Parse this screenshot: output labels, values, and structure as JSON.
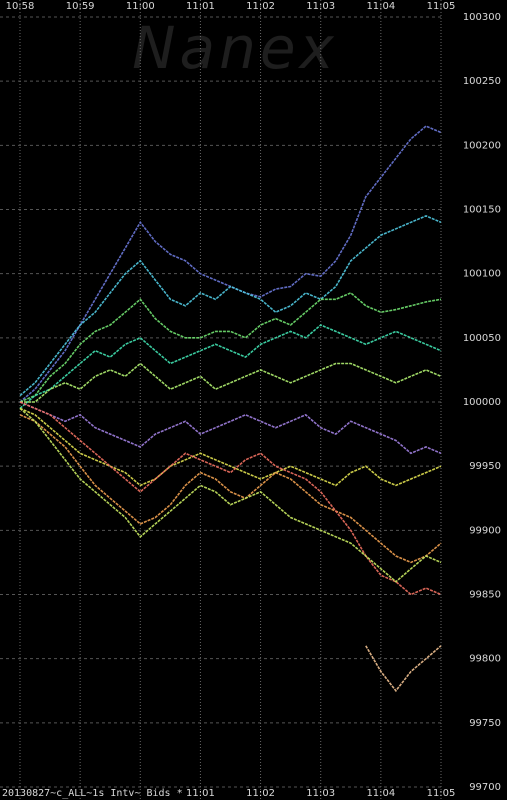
{
  "chart_data": {
    "type": "line",
    "watermark": "Nanex",
    "footer": "20130827~c_ALL~1s Intv~ Bids *",
    "xlim": [
      39480,
      39900
    ],
    "xticks": [
      {
        "value": 39480,
        "label": "10:58"
      },
      {
        "value": 39540,
        "label": "10:59"
      },
      {
        "value": 39600,
        "label": "11:00"
      },
      {
        "value": 39660,
        "label": "11:01"
      },
      {
        "value": 39720,
        "label": "11:02"
      },
      {
        "value": 39780,
        "label": "11:03"
      },
      {
        "value": 39840,
        "label": "11:04"
      },
      {
        "value": 39900,
        "label": "11:05"
      }
    ],
    "ylim": [
      99700,
      100300
    ],
    "yticks": [
      99700,
      99750,
      99800,
      99850,
      99900,
      99950,
      100000,
      100050,
      100100,
      100150,
      100200,
      100250,
      100300
    ],
    "grid": true,
    "x": [
      39480,
      39495,
      39510,
      39525,
      39540,
      39555,
      39570,
      39585,
      39600,
      39615,
      39630,
      39645,
      39660,
      39675,
      39690,
      39705,
      39720,
      39735,
      39750,
      39765,
      39780,
      39795,
      39810,
      39825,
      39840,
      39855,
      39870,
      39885,
      39900
    ],
    "series": [
      {
        "color": "#6a78d8",
        "values": [
          100000,
          100010,
          100025,
          100040,
          100060,
          100080,
          100100,
          100120,
          100140,
          100125,
          100115,
          100110,
          100100,
          100095,
          100090,
          100085,
          100082,
          100088,
          100090,
          100100,
          100098,
          100110,
          100130,
          100160,
          100175,
          100190,
          100205,
          100215,
          100210
        ]
      },
      {
        "color": "#50c8e0",
        "values": [
          100005,
          100015,
          100030,
          100045,
          100060,
          100070,
          100085,
          100100,
          100110,
          100095,
          100080,
          100075,
          100085,
          100080,
          100090,
          100085,
          100080,
          100070,
          100075,
          100085,
          100080,
          100090,
          100110,
          100120,
          100130,
          100135,
          100140,
          100145,
          100140
        ]
      },
      {
        "color": "#70e070",
        "values": [
          100000,
          100005,
          100020,
          100030,
          100045,
          100055,
          100060,
          100070,
          100080,
          100065,
          100055,
          100050,
          100050,
          100055,
          100055,
          100050,
          100060,
          100065,
          100060,
          100070,
          100080,
          100080,
          100085,
          100075,
          100070,
          100072,
          100075,
          100078,
          100080
        ]
      },
      {
        "color": "#40e0b0",
        "values": [
          99995,
          100005,
          100010,
          100020,
          100030,
          100040,
          100035,
          100045,
          100050,
          100040,
          100030,
          100035,
          100040,
          100045,
          100040,
          100035,
          100045,
          100050,
          100055,
          100050,
          100060,
          100055,
          100050,
          100045,
          100050,
          100055,
          100050,
          100045,
          100040
        ]
      },
      {
        "color": "#b0f070",
        "values": [
          100000,
          100000,
          100010,
          100015,
          100010,
          100020,
          100025,
          100020,
          100030,
          100020,
          100010,
          100015,
          100020,
          100010,
          100015,
          100020,
          100025,
          100020,
          100015,
          100020,
          100025,
          100030,
          100030,
          100025,
          100020,
          100015,
          100020,
          100025,
          100020
        ]
      },
      {
        "color": "#a080e0",
        "values": [
          100000,
          99995,
          99990,
          99985,
          99990,
          99980,
          99975,
          99970,
          99965,
          99975,
          99980,
          99985,
          99975,
          99980,
          99985,
          99990,
          99985,
          99980,
          99985,
          99990,
          99980,
          99975,
          99985,
          99980,
          99975,
          99970,
          99960,
          99965,
          99960
        ]
      },
      {
        "color": "#e0e050",
        "values": [
          99995,
          99990,
          99980,
          99970,
          99960,
          99955,
          99950,
          99945,
          99935,
          99940,
          99950,
          99955,
          99960,
          99955,
          99950,
          99945,
          99940,
          99945,
          99950,
          99945,
          99940,
          99935,
          99945,
          99950,
          99940,
          99935,
          99940,
          99945,
          99950
        ]
      },
      {
        "color": "#f0a050",
        "values": [
          99990,
          99985,
          99975,
          99965,
          99950,
          99935,
          99925,
          99915,
          99905,
          99910,
          99920,
          99935,
          99945,
          99940,
          99930,
          99925,
          99935,
          99945,
          99940,
          99930,
          99920,
          99915,
          99910,
          99900,
          99890,
          99880,
          99875,
          99880,
          99890
        ]
      },
      {
        "color": "#f07060",
        "values": [
          100000,
          99995,
          99990,
          99980,
          99970,
          99960,
          99950,
          99940,
          99930,
          99940,
          99950,
          99960,
          99955,
          99950,
          99945,
          99955,
          99960,
          99950,
          99945,
          99940,
          99930,
          99915,
          99900,
          99880,
          99865,
          99860,
          99850,
          99855,
          99850
        ]
      },
      {
        "color": "#c8e860",
        "values": [
          99995,
          99985,
          99970,
          99955,
          99940,
          99930,
          99920,
          99910,
          99895,
          99905,
          99915,
          99925,
          99935,
          99930,
          99920,
          99925,
          99930,
          99920,
          99910,
          99905,
          99900,
          99895,
          99890,
          99880,
          99870,
          99860,
          99870,
          99880,
          99875
        ]
      },
      {
        "color": "#f0c090",
        "values": [
          null,
          null,
          null,
          null,
          null,
          null,
          null,
          null,
          null,
          null,
          null,
          null,
          null,
          null,
          null,
          null,
          null,
          null,
          null,
          null,
          null,
          null,
          null,
          99810,
          99790,
          99775,
          99790,
          99800,
          99810
        ]
      }
    ]
  }
}
